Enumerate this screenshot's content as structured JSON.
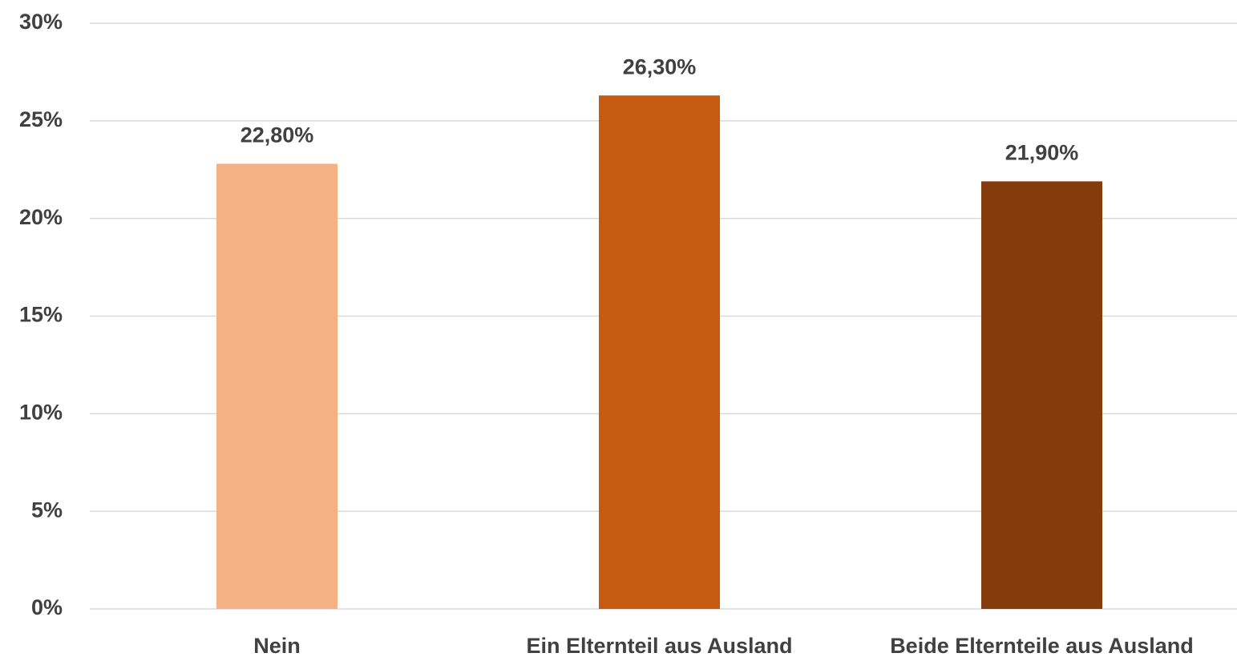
{
  "chart_data": {
    "type": "bar",
    "categories": [
      "Nein",
      "Ein Elternteil aus Ausland",
      "Beide Elternteile aus Ausland"
    ],
    "values": [
      22.8,
      26.3,
      21.9
    ],
    "value_labels": [
      "22,80%",
      "26,30%",
      "21,90%"
    ],
    "colors": [
      "#F4B183",
      "#C55A11",
      "#843C0C"
    ],
    "ylim": [
      0,
      30
    ],
    "yticks": [
      {
        "value": 0,
        "label": "0%"
      },
      {
        "value": 5,
        "label": "5%"
      },
      {
        "value": 10,
        "label": "10%"
      },
      {
        "value": 15,
        "label": "15%"
      },
      {
        "value": 20,
        "label": "20%"
      },
      {
        "value": 25,
        "label": "25%"
      },
      {
        "value": 30,
        "label": "30%"
      }
    ],
    "grid": true
  }
}
